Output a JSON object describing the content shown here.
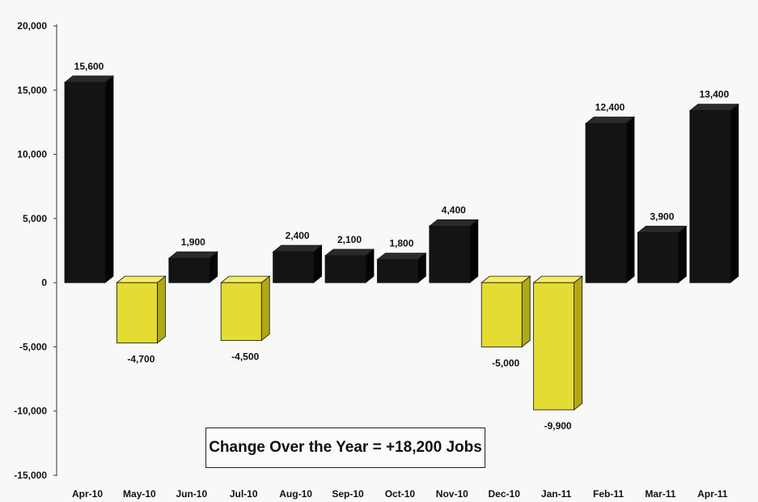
{
  "chart_data": {
    "type": "bar",
    "title": "",
    "xlabel": "",
    "ylabel": "",
    "ylim": [
      -15000,
      20000
    ],
    "yticks": [
      20000,
      15000,
      10000,
      5000,
      0,
      -5000,
      -10000,
      -15000
    ],
    "ytick_labels": [
      "20,000",
      "15,000",
      "10,000",
      "5,000",
      "0",
      "-5,000",
      "-10,000",
      "-15,000"
    ],
    "categories": [
      "Apr-10",
      "May-10",
      "Jun-10",
      "Jul-10",
      "Aug-10",
      "Sep-10",
      "Oct-10",
      "Nov-10",
      "Dec-10",
      "Jan-11",
      "Feb-11",
      "Mar-11",
      "Apr-11"
    ],
    "values": [
      15600,
      -4700,
      1900,
      -4500,
      2400,
      2100,
      1800,
      4400,
      -5000,
      -9900,
      12400,
      3900,
      13400
    ],
    "data_labels": [
      "15,600",
      "-4,700",
      "1,900",
      "-4,500",
      "2,400",
      "2,100",
      "1,800",
      "4,400",
      "-5,000",
      "-9,900",
      "12,400",
      "3,900",
      "13,400"
    ],
    "grid": false,
    "legend": "none",
    "colors": {
      "positive": "#141414",
      "positive_top": "#2a2a2a",
      "positive_side": "#050505",
      "negative": "#e4dc32",
      "negative_top": "#f2ec6a",
      "negative_side": "#b0a814"
    },
    "annotation": "Change Over the Year = +18,200 Jobs"
  }
}
